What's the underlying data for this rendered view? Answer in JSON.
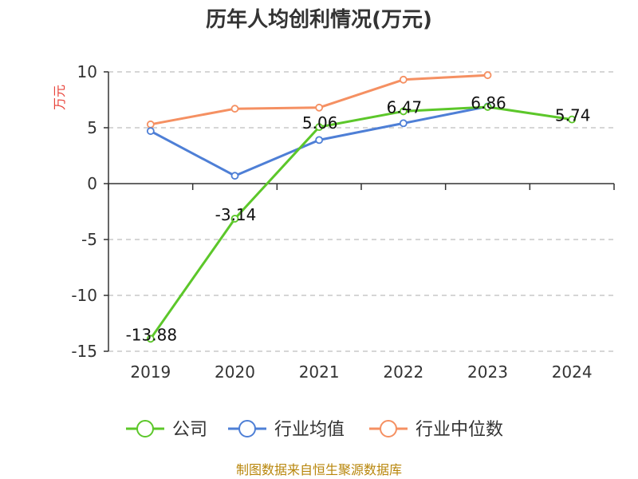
{
  "chart_data": {
    "type": "line",
    "title": "历年人均创利情况(万元)",
    "ylabel": "万元",
    "ylim": [
      -15,
      10
    ],
    "yticks": [
      10,
      5,
      0,
      -5,
      -10,
      -15
    ],
    "categories": [
      "2019",
      "2020",
      "2021",
      "2022",
      "2023",
      "2024"
    ],
    "grid": true,
    "legend_position": "bottom-center",
    "series": [
      {
        "name": "公司",
        "color": "#5cc72a",
        "values": [
          -13.88,
          -3.14,
          5.06,
          6.47,
          6.86,
          5.74
        ],
        "labels": [
          "-13.88",
          "-3.14",
          "5.06",
          "6.47",
          "6.86",
          "5.74"
        ]
      },
      {
        "name": "行业均值",
        "color": "#4e7fd6",
        "values": [
          4.7,
          0.7,
          3.9,
          5.4,
          6.9,
          null
        ]
      },
      {
        "name": "行业中位数",
        "color": "#f59062",
        "values": [
          5.3,
          6.7,
          6.8,
          9.3,
          9.7,
          null
        ]
      }
    ],
    "source": "制图数据来自恒生聚源数据库"
  }
}
